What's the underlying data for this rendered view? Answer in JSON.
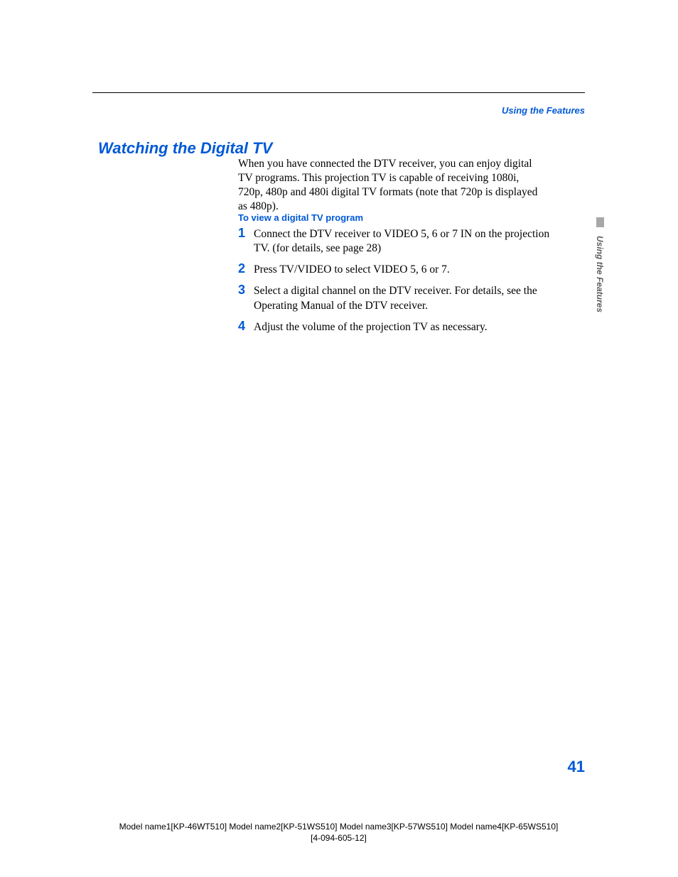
{
  "colors": {
    "accent": "#0059d6",
    "text": "#000000",
    "side_tab": "#a8a8a8",
    "side_label": "#5c5c5c",
    "background": "#ffffff"
  },
  "header": {
    "section_label": "Using the Features"
  },
  "title": "Watching the Digital TV",
  "intro": "When you have connected the DTV receiver, you can enjoy digital TV programs. This projection TV is capable of receiving 1080i, 720p, 480p and 480i digital TV formats (note that 720p is displayed as 480p).",
  "subhead": "To view a digital TV program",
  "steps": [
    {
      "num": "1",
      "text": "Connect the DTV receiver to VIDEO 5, 6 or 7 IN on the projection TV. (for details, see page 28)"
    },
    {
      "num": "2",
      "text": "Press TV/VIDEO to select VIDEO 5, 6 or 7."
    },
    {
      "num": "3",
      "text": "Select a digital channel on the DTV receiver. For details, see the Operating Manual of the DTV receiver."
    },
    {
      "num": "4",
      "text": "Adjust the volume of the projection TV as necessary."
    }
  ],
  "side_label": "Using the Features",
  "page_number": "41",
  "footer": {
    "line1": "Model name1[KP-46WT510] Model name2[KP-51WS510] Model name3[KP-57WS510] Model name4[KP-65WS510]",
    "line2": "[4-094-605-12]"
  }
}
